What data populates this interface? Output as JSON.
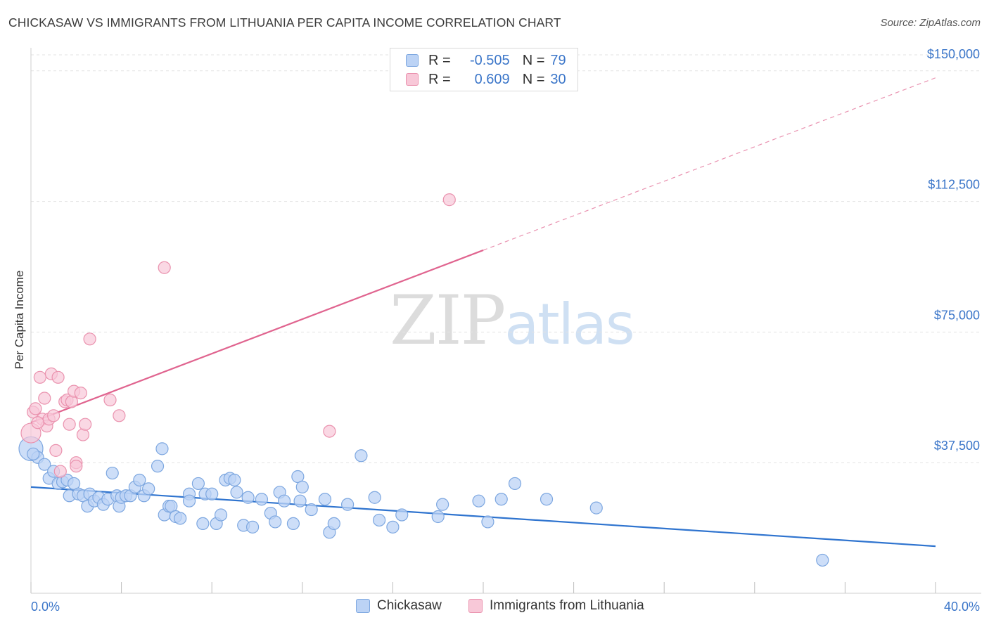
{
  "title": "CHICKASAW VS IMMIGRANTS FROM LITHUANIA PER CAPITA INCOME CORRELATION CHART",
  "source": "Source: ZipAtlas.com",
  "watermark": {
    "zip": "ZIP",
    "atlas": "atlas"
  },
  "legend": {
    "r_label": "R =",
    "n_label": "N =",
    "series1": {
      "r": "-0.505",
      "n": "79"
    },
    "series2": {
      "r": "0.609",
      "n": "30"
    }
  },
  "colors": {
    "blue_fill": "#bcd3f5",
    "blue_stroke": "#7da7e0",
    "blue_line": "#2f74cf",
    "pink_fill": "#f8c8d8",
    "pink_stroke": "#ea92ae",
    "pink_line": "#e0648f",
    "axis_text": "#3b76c9",
    "grid": "#e3e3e3"
  },
  "chart_data": {
    "type": "scatter",
    "title": "CHICKASAW VS IMMIGRANTS FROM LITHUANIA PER CAPITA INCOME CORRELATION CHART",
    "xlabel": "",
    "ylabel": "Per Capita Income",
    "xlim": [
      0,
      40
    ],
    "ylim": [
      0,
      155000
    ],
    "x_tick_labels": [
      "0.0%",
      "40.0%"
    ],
    "y_ticks": [
      37500,
      75000,
      112500,
      150000
    ],
    "y_tick_labels": [
      "$37,500",
      "$75,000",
      "$112,500",
      "$150,000"
    ],
    "grid": true,
    "series": [
      {
        "name": "Chickasaw",
        "color": "#2f74cf",
        "trend": {
          "x0": 0,
          "y0": 30500,
          "x1": 40,
          "y1": 13500,
          "dashed_to": 40
        },
        "points": [
          [
            0.0,
            41500
          ],
          [
            0.3,
            39000
          ],
          [
            0.6,
            37000
          ],
          [
            0.8,
            33000
          ],
          [
            1.0,
            35000
          ],
          [
            1.2,
            31500
          ],
          [
            1.4,
            32000
          ],
          [
            1.6,
            32500
          ],
          [
            1.7,
            28000
          ],
          [
            1.9,
            31500
          ],
          [
            2.1,
            28500
          ],
          [
            2.3,
            28000
          ],
          [
            2.5,
            25000
          ],
          [
            2.6,
            28500
          ],
          [
            2.8,
            26500
          ],
          [
            3.0,
            27500
          ],
          [
            3.2,
            25500
          ],
          [
            3.4,
            27000
          ],
          [
            3.6,
            34500
          ],
          [
            3.8,
            28000
          ],
          [
            3.9,
            25000
          ],
          [
            4.0,
            27500
          ],
          [
            4.2,
            28000
          ],
          [
            4.4,
            28000
          ],
          [
            4.6,
            30500
          ],
          [
            4.8,
            32500
          ],
          [
            5.0,
            28000
          ],
          [
            5.2,
            30000
          ],
          [
            5.6,
            36500
          ],
          [
            5.8,
            41500
          ],
          [
            5.9,
            22500
          ],
          [
            6.1,
            25000
          ],
          [
            6.2,
            25000
          ],
          [
            6.4,
            22000
          ],
          [
            6.6,
            21500
          ],
          [
            7.0,
            28500
          ],
          [
            7.0,
            26500
          ],
          [
            7.4,
            31500
          ],
          [
            7.6,
            20000
          ],
          [
            7.7,
            28500
          ],
          [
            8.0,
            28500
          ],
          [
            8.2,
            20000
          ],
          [
            8.4,
            22500
          ],
          [
            8.6,
            32500
          ],
          [
            8.8,
            33000
          ],
          [
            9.0,
            32500
          ],
          [
            9.1,
            29000
          ],
          [
            9.4,
            19500
          ],
          [
            9.6,
            27500
          ],
          [
            9.8,
            19000
          ],
          [
            10.2,
            27000
          ],
          [
            10.6,
            23000
          ],
          [
            10.8,
            20500
          ],
          [
            11.0,
            29000
          ],
          [
            11.2,
            26500
          ],
          [
            11.6,
            20000
          ],
          [
            11.8,
            33500
          ],
          [
            11.9,
            26500
          ],
          [
            12.0,
            30500
          ],
          [
            12.4,
            24000
          ],
          [
            13.0,
            27000
          ],
          [
            13.2,
            17500
          ],
          [
            13.4,
            20000
          ],
          [
            14.0,
            25500
          ],
          [
            14.6,
            39500
          ],
          [
            15.2,
            27500
          ],
          [
            15.4,
            21000
          ],
          [
            16.0,
            19000
          ],
          [
            16.4,
            22500
          ],
          [
            18.0,
            22000
          ],
          [
            18.2,
            25500
          ],
          [
            19.8,
            26500
          ],
          [
            20.2,
            20500
          ],
          [
            20.8,
            27000
          ],
          [
            21.4,
            31500
          ],
          [
            22.8,
            27000
          ],
          [
            25.0,
            24500
          ],
          [
            35.0,
            9500
          ],
          [
            0.1,
            40000
          ]
        ]
      },
      {
        "name": "Immigrants from Lithuania",
        "color": "#e0648f",
        "trend": {
          "x0": 0,
          "y0": 49000,
          "x1": 20,
          "y1": 98500,
          "dashed_to": 40
        },
        "points": [
          [
            0.0,
            46000
          ],
          [
            0.1,
            52000
          ],
          [
            0.2,
            53000
          ],
          [
            0.4,
            62000
          ],
          [
            0.5,
            50000
          ],
          [
            0.6,
            56000
          ],
          [
            0.7,
            48000
          ],
          [
            0.8,
            50000
          ],
          [
            0.9,
            63000
          ],
          [
            1.0,
            51000
          ],
          [
            1.1,
            41000
          ],
          [
            1.2,
            62000
          ],
          [
            1.3,
            35000
          ],
          [
            1.5,
            55000
          ],
          [
            1.6,
            55500
          ],
          [
            1.7,
            48500
          ],
          [
            1.8,
            55000
          ],
          [
            1.9,
            58000
          ],
          [
            2.0,
            37500
          ],
          [
            2.0,
            36500
          ],
          [
            2.2,
            57500
          ],
          [
            2.3,
            45500
          ],
          [
            2.4,
            48500
          ],
          [
            2.6,
            73000
          ],
          [
            3.5,
            55500
          ],
          [
            3.9,
            51000
          ],
          [
            5.9,
            93500
          ],
          [
            13.2,
            46500
          ],
          [
            18.5,
            113000
          ],
          [
            0.3,
            49000
          ]
        ]
      }
    ]
  }
}
